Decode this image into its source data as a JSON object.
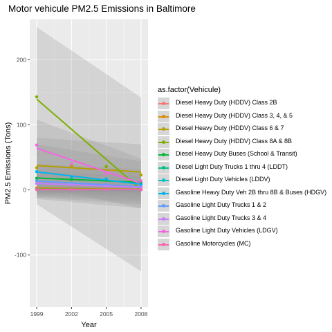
{
  "chart_data": {
    "type": "scatter",
    "title": "Motor vehicule PM2.5 Emissions in Baltimore",
    "xlabel": "Year",
    "ylabel": "PM2.5 Emissions (Tons)",
    "x_ticks": [
      1999,
      2002,
      2005,
      2008
    ],
    "y_ticks": [
      -100,
      0,
      100,
      200
    ],
    "xlim": [
      1998.4,
      2008.6
    ],
    "ylim": [
      -180,
      262
    ],
    "grid": true,
    "legend_title": "as.factor(Vehicule)",
    "legend_position": "right",
    "series": [
      {
        "name": "Diesel  Heavy Duty (HDDV) Class 2B",
        "color": "#F8766D",
        "x": [
          1999,
          2008
        ],
        "y": [
          0.5,
          0.3
        ],
        "band": [
          [
            -4,
            5
          ],
          [
            -4,
            5
          ]
        ]
      },
      {
        "name": "Diesel  Heavy Duty (HDDV) Class 3, 4, & 5",
        "color": "#DE8C00",
        "x": [
          1999,
          2002,
          2005,
          2008
        ],
        "y": [
          3,
          2,
          1.5,
          1
        ],
        "band": [
          [
            -6,
            12
          ],
          [
            -7,
            11
          ]
        ]
      },
      {
        "name": "Diesel  Heavy Duty (HDDV) Class 6 & 7",
        "color": "#B79F00",
        "x": [
          1999,
          2002,
          2005,
          2008
        ],
        "y": [
          34,
          37,
          36,
          23
        ],
        "band": [
          [
            -12,
            80
          ],
          [
            -22,
            70
          ]
        ]
      },
      {
        "name": "Diesel  Heavy Duty (HDDV) Class 8A & 8B",
        "color": "#7CAE00",
        "x": [
          1999,
          2005,
          2008
        ],
        "y": [
          143,
          36,
          8
        ],
        "band": [
          [
            -22,
            250
          ],
          [
            -125,
            142
          ]
        ]
      },
      {
        "name": "Diesel  Heavy Duty Buses (School & Transit)",
        "color": "#00BA38",
        "x": [
          1999,
          2002,
          2005,
          2008
        ],
        "y": [
          18,
          16,
          15,
          11
        ],
        "band": [
          [
            -6,
            40
          ],
          [
            -10,
            32
          ]
        ]
      },
      {
        "name": "Diesel  Light Duty Trucks 1 thru 4 (LDDT)",
        "color": "#00C08B",
        "x": [
          1999,
          2002,
          2005,
          2008
        ],
        "y": [
          1,
          1,
          0.8,
          0.5
        ],
        "band": [
          [
            -4,
            6
          ],
          [
            -4,
            5
          ]
        ]
      },
      {
        "name": "Diesel  Light Duty Vehicles (LDDV)",
        "color": "#00BFC4",
        "x": [
          1999,
          2002,
          2005,
          2008
        ],
        "y": [
          0.5,
          0.4,
          0.3,
          0.2
        ],
        "band": [
          [
            -3,
            4
          ],
          [
            -3,
            3
          ]
        ]
      },
      {
        "name": "Gasoline  Heavy Duty Veh 2B thru 8B & Buses (HDGV)",
        "color": "#00B4F0",
        "x": [
          1999,
          2002,
          2005,
          2008
        ],
        "y": [
          28,
          20,
          17,
          8
        ],
        "band": [
          [
            -14,
            70
          ],
          [
            -28,
            44
          ]
        ]
      },
      {
        "name": "Gasoline  Light Duty Trucks 1 & 2",
        "color": "#619CFF",
        "x": [
          1999,
          2002,
          2005,
          2008
        ],
        "y": [
          14,
          10,
          8,
          5
        ],
        "band": [
          [
            -10,
            38
          ],
          [
            -18,
            28
          ]
        ]
      },
      {
        "name": "Gasoline  Light Duty Trucks 3 & 4",
        "color": "#C77CFF",
        "x": [
          1999,
          2002,
          2005,
          2008
        ],
        "y": [
          10,
          8,
          6,
          4
        ],
        "band": [
          [
            -8,
            28
          ],
          [
            -14,
            22
          ]
        ]
      },
      {
        "name": "Gasoline  Light Duty Vehicles (LDGV)",
        "color": "#F564E3",
        "x": [
          1999,
          2002,
          2005,
          2008
        ],
        "y": [
          69,
          40,
          25,
          14
        ],
        "band": [
          [
            6,
            108
          ],
          [
            -28,
            48
          ]
        ]
      },
      {
        "name": "Gasoline  Motorcycles (MC)",
        "color": "#FF64B0",
        "x": [
          1999,
          2002,
          2005,
          2008
        ],
        "y": [
          0.5,
          0.5,
          0.4,
          0.3
        ],
        "band": [
          [
            -3,
            4
          ],
          [
            -3,
            3
          ]
        ]
      }
    ]
  }
}
